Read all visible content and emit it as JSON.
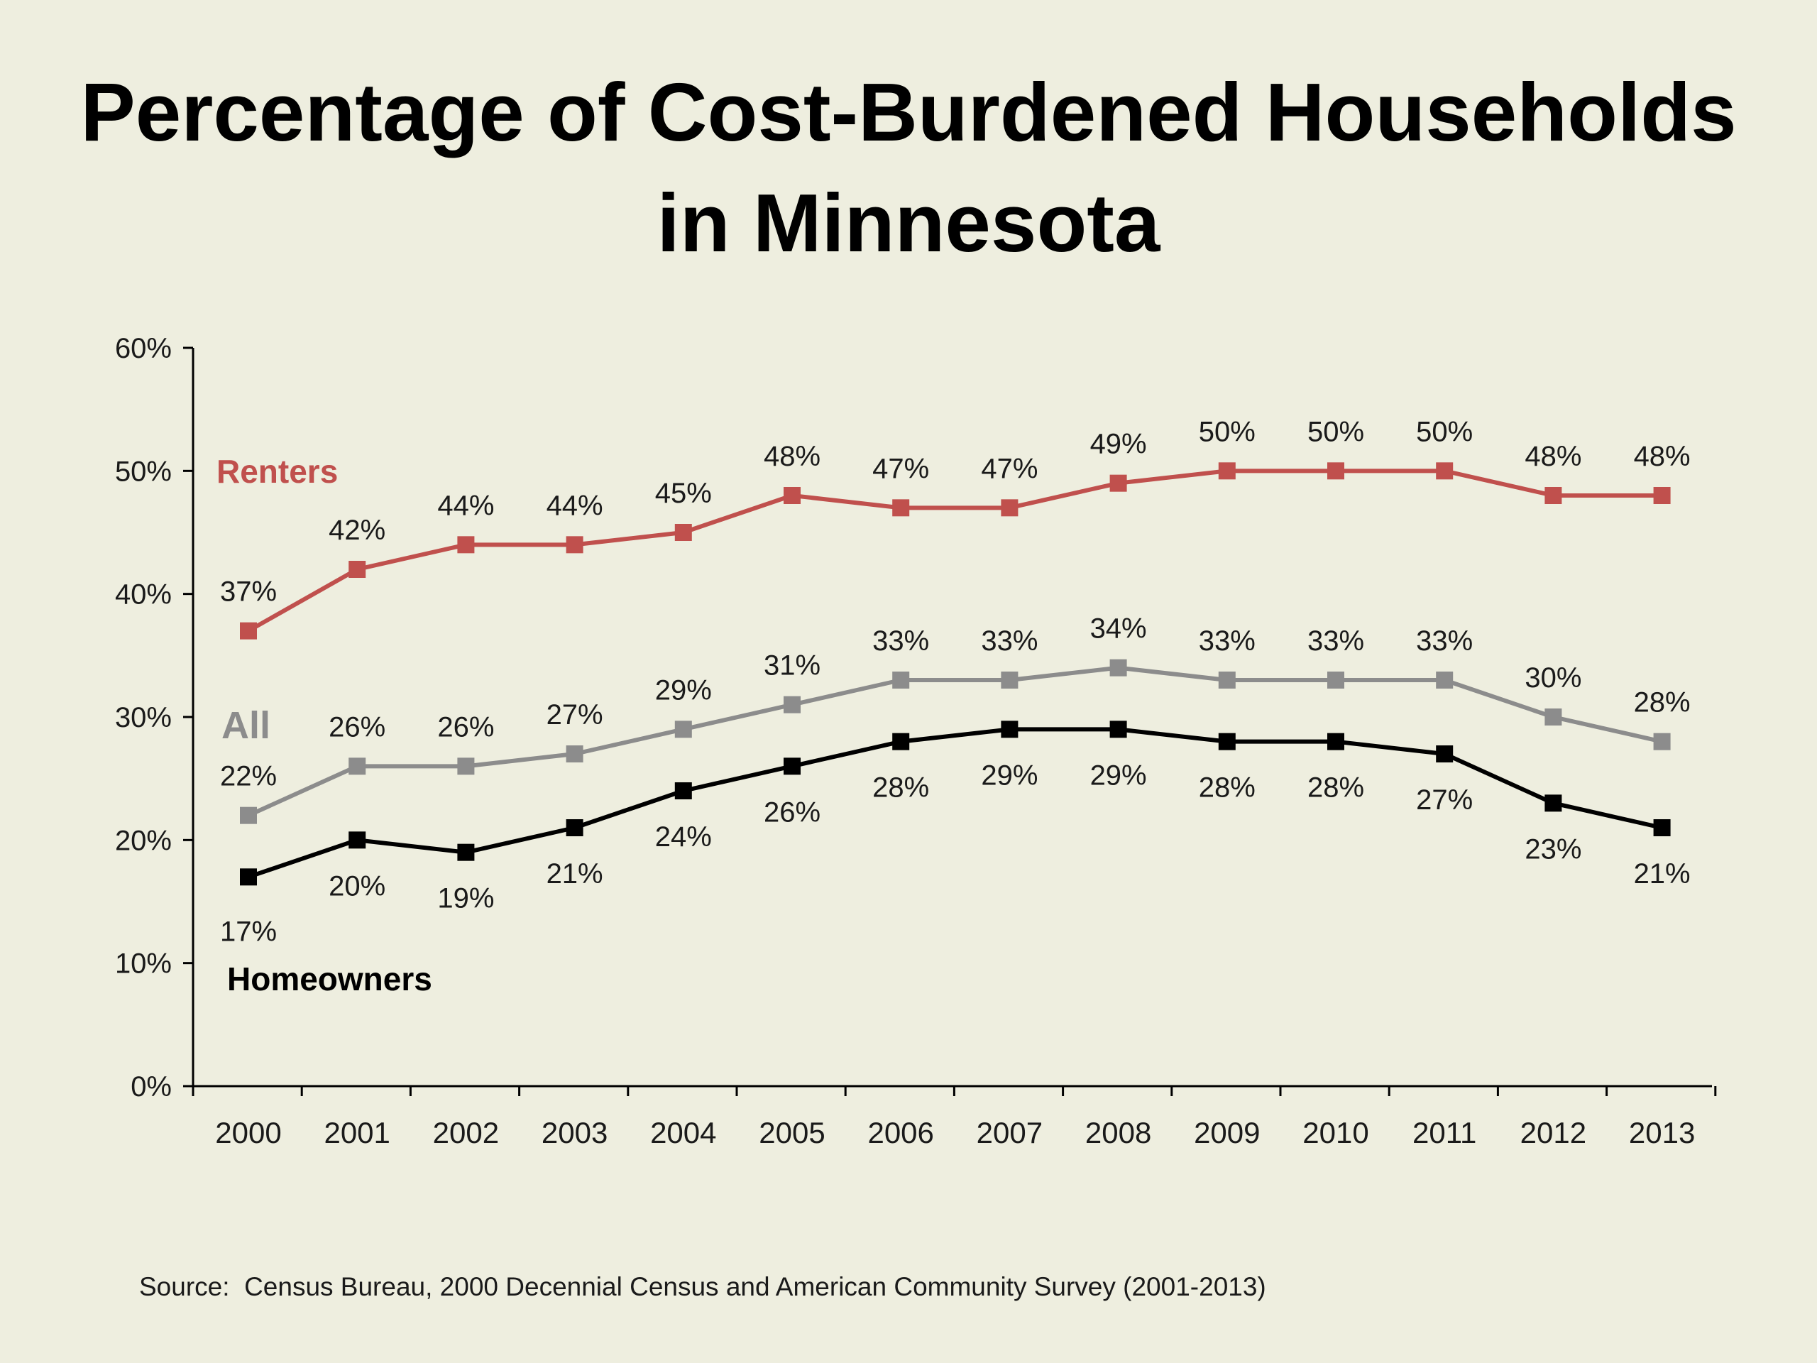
{
  "title_line1": "Percentage of Cost-Burdened Households",
  "title_line2": "in Minnesota",
  "source": "Source:  Census Bureau, 2000 Decennial Census and American Community Survey (2001-2013)",
  "chart_data": {
    "type": "line",
    "x": [
      "2000",
      "2001",
      "2002",
      "2003",
      "2004",
      "2005",
      "2006",
      "2007",
      "2008",
      "2009",
      "2010",
      "2011",
      "2012",
      "2013"
    ],
    "ylim": [
      0,
      60
    ],
    "yticks": [
      0,
      10,
      20,
      30,
      40,
      50,
      60
    ],
    "ytick_labels": [
      "0%",
      "10%",
      "20%",
      "30%",
      "40%",
      "50%",
      "60%"
    ],
    "grid": false,
    "series": [
      {
        "name": "Renters",
        "color": "#c0504d",
        "values": [
          37,
          42,
          44,
          44,
          45,
          48,
          47,
          47,
          49,
          50,
          50,
          50,
          48,
          48
        ],
        "labels": [
          "37%",
          "42%",
          "44%",
          "44%",
          "45%",
          "48%",
          "47%",
          "47%",
          "49%",
          "50%",
          "50%",
          "50%",
          "48%",
          "48%"
        ]
      },
      {
        "name": "All",
        "color": "#8c8c8c",
        "values": [
          22,
          26,
          26,
          27,
          29,
          31,
          33,
          33,
          34,
          33,
          33,
          33,
          30,
          28
        ],
        "labels": [
          "22%",
          "26%",
          "26%",
          "27%",
          "29%",
          "31%",
          "33%",
          "33%",
          "34%",
          "33%",
          "33%",
          "33%",
          "30%",
          "28%"
        ]
      },
      {
        "name": "Homeowners",
        "color": "#000000",
        "values": [
          17,
          20,
          19,
          21,
          24,
          26,
          28,
          29,
          29,
          28,
          28,
          27,
          23,
          21
        ],
        "labels": [
          "17%",
          "20%",
          "19%",
          "21%",
          "24%",
          "26%",
          "28%",
          "29%",
          "29%",
          "28%",
          "28%",
          "27%",
          "23%",
          "21%"
        ]
      }
    ]
  }
}
